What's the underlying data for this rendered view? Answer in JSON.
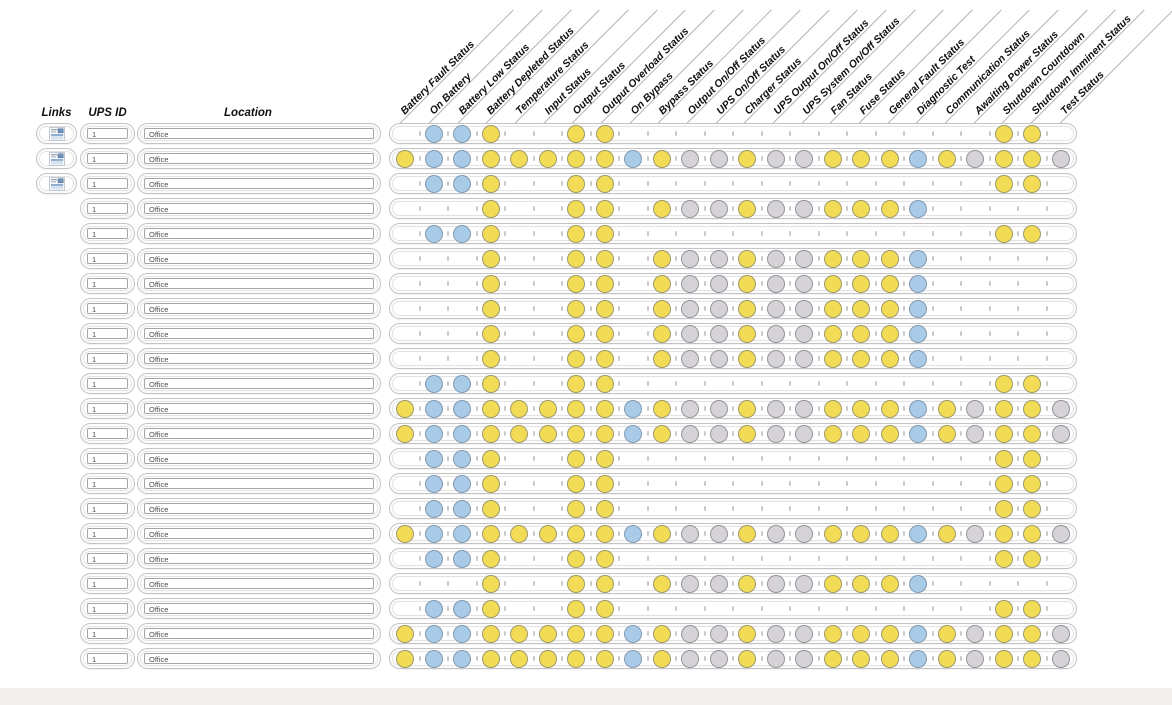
{
  "table": {
    "links_header": "Links",
    "ups_id_header": "UPS ID",
    "location_header": "Location",
    "status_columns": [
      "Battery Fault Status",
      "On Battery",
      "Battery Low Status",
      "Battery Depleted Status",
      "Temperature Status",
      "Input Status",
      "Output Status",
      "Output Overload Status",
      "On Bypass",
      "Bypass Status",
      "Output On/Off Status",
      "UPS On/Off Status",
      "Charger Status",
      "UPS Output On/Off Status",
      "UPS System On/Off Status",
      "Fan Status",
      "Fuse Status",
      "General Fault Status",
      "Diagnostic Test",
      "Communication Status",
      "Awaiting Power Status",
      "Shutdown Countdown",
      "Shutdown Imminent Status",
      "Test Status"
    ],
    "status_legend": {
      "Y": "yellow",
      "B": "blue",
      "G": "gray",
      "-": "empty"
    },
    "colors": {
      "yellow_fill": "#F2DC55",
      "yellow_border": "#9F9968",
      "blue_fill": "#A9CBE8",
      "blue_border": "#8399AF",
      "gray_fill": "#D6D3D8",
      "gray_border": "#96929B",
      "tick": "#C9C9C9",
      "footer": "#F1EFEE"
    },
    "rows": [
      {
        "has_link_button": true,
        "ups_id": "1",
        "location": "Office",
        "statuses": "-BBY--YY-------------YY-"
      },
      {
        "has_link_button": true,
        "ups_id": "1",
        "location": "Office",
        "statuses": "YBBYYYYYBYGGYGGYYYBYGYYG"
      },
      {
        "has_link_button": true,
        "ups_id": "1",
        "location": "Office",
        "statuses": "-BBY--YY-------------YY-"
      },
      {
        "has_link_button": false,
        "ups_id": "1",
        "location": "Office",
        "statuses": "---Y--YY-YGGYGGYYYB-----"
      },
      {
        "has_link_button": false,
        "ups_id": "1",
        "location": "Office",
        "statuses": "-BBY--YY-------------YY-"
      },
      {
        "has_link_button": false,
        "ups_id": "1",
        "location": "Office",
        "statuses": "---Y--YY-YGGYGGYYYB-----"
      },
      {
        "has_link_button": false,
        "ups_id": "1",
        "location": "Office",
        "statuses": "---Y--YY-YGGYGGYYYB-----"
      },
      {
        "has_link_button": false,
        "ups_id": "1",
        "location": "Office",
        "statuses": "---Y--YY-YGGYGGYYYB-----"
      },
      {
        "has_link_button": false,
        "ups_id": "1",
        "location": "Office",
        "statuses": "---Y--YY-YGGYGGYYYB-----"
      },
      {
        "has_link_button": false,
        "ups_id": "1",
        "location": "Office",
        "statuses": "---Y--YY-YGGYGGYYYB-----"
      },
      {
        "has_link_button": false,
        "ups_id": "1",
        "location": "Office",
        "statuses": "-BBY--YY-------------YY-"
      },
      {
        "has_link_button": false,
        "ups_id": "1",
        "location": "Office",
        "statuses": "YBBYYYYYBYGGYGGYYYBYGYYG"
      },
      {
        "has_link_button": false,
        "ups_id": "1",
        "location": "Office",
        "statuses": "YBBYYYYYBYGGYGGYYYBYGYYG"
      },
      {
        "has_link_button": false,
        "ups_id": "1",
        "location": "Office",
        "statuses": "-BBY--YY-------------YY-"
      },
      {
        "has_link_button": false,
        "ups_id": "1",
        "location": "Office",
        "statuses": "-BBY--YY-------------YY-"
      },
      {
        "has_link_button": false,
        "ups_id": "1",
        "location": "Office",
        "statuses": "-BBY--YY-------------YY-"
      },
      {
        "has_link_button": false,
        "ups_id": "1",
        "location": "Office",
        "statuses": "YBBYYYYYBYGGYGGYYYBYGYYG"
      },
      {
        "has_link_button": false,
        "ups_id": "1",
        "location": "Office",
        "statuses": "-BBY--YY-------------YY-"
      },
      {
        "has_link_button": false,
        "ups_id": "1",
        "location": "Office",
        "statuses": "---Y--YY-YGGYGGYYYB-----"
      },
      {
        "has_link_button": false,
        "ups_id": "1",
        "location": "Office",
        "statuses": "-BBY--YY-------------YY-"
      },
      {
        "has_link_button": false,
        "ups_id": "1",
        "location": "Office",
        "statuses": "YBBYYYYYBYGGYGGYYYBYGYYG"
      },
      {
        "has_link_button": false,
        "ups_id": "1",
        "location": "Office",
        "statuses": "YBBYYYYYBYGGYGGYYYBYGYYG"
      }
    ]
  }
}
